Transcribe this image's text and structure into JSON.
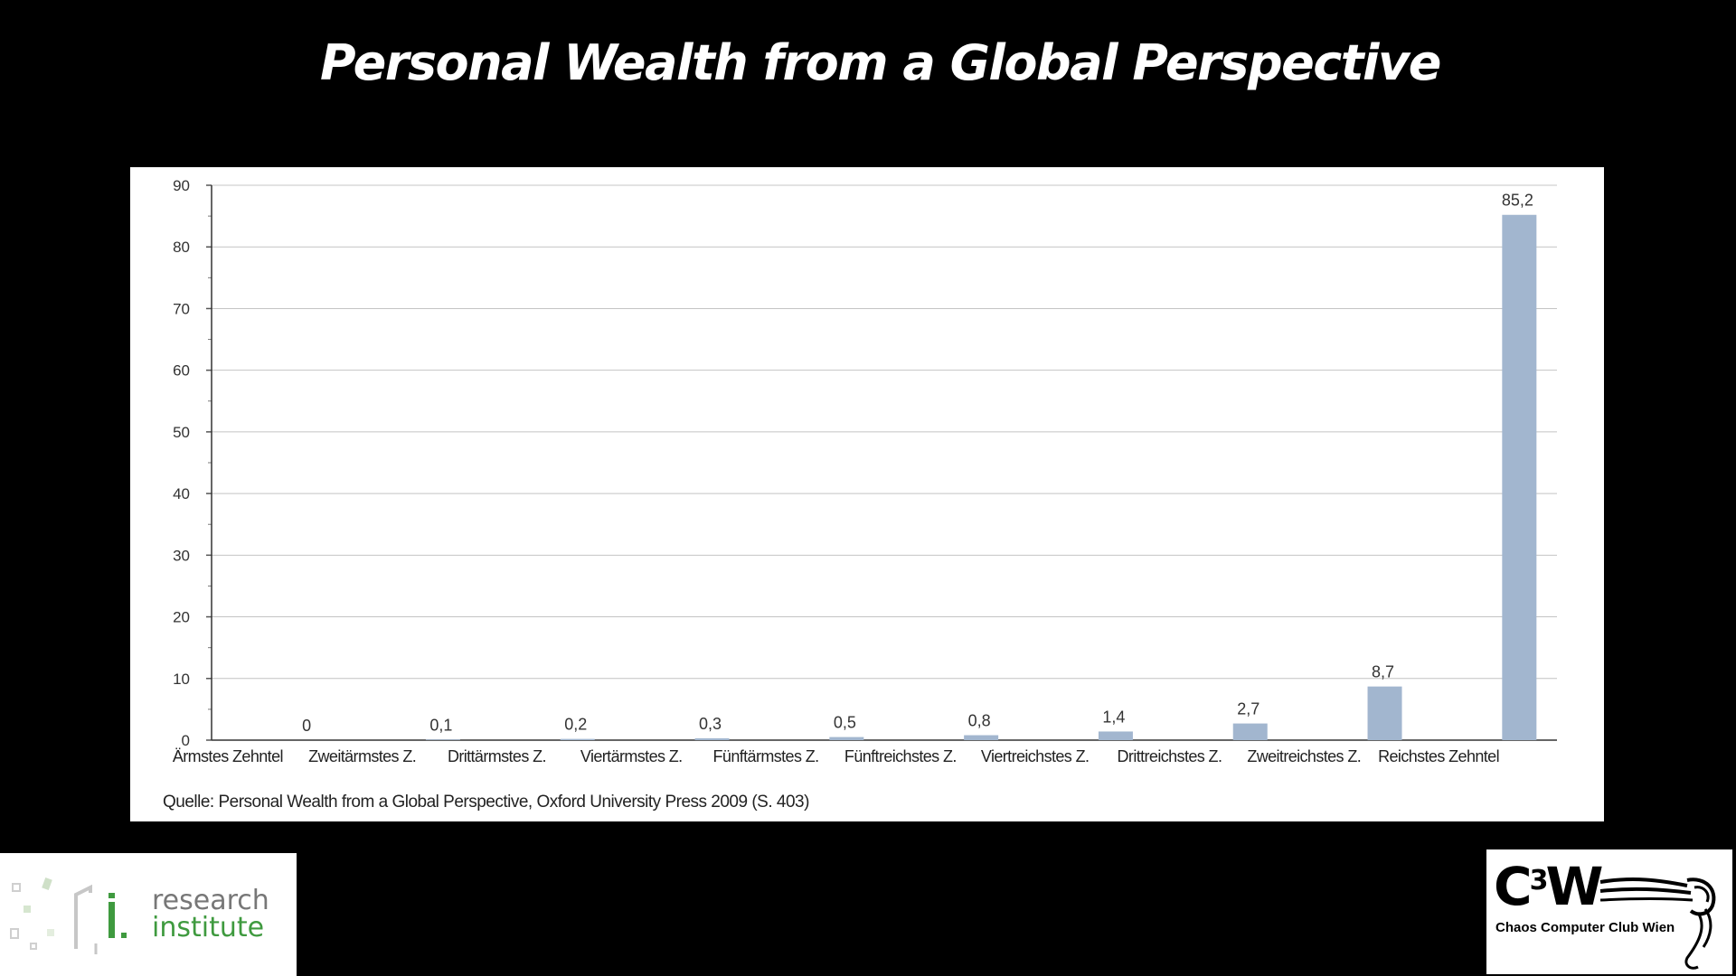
{
  "slide": {
    "title": "Personal Wealth from a Global Perspective"
  },
  "chart_data": {
    "type": "bar",
    "categories": [
      "Ärmstes Zehntel",
      "Zweitärmstes Z.",
      "Drittärmstes Z.",
      "Viertärmstes Z.",
      "Fünftärmstes Z.",
      "Fünftreichstes Z.",
      "Viertreichstes Z.",
      "Drittreichstes Z.",
      "Zweitreichstes Z.",
      "Reichstes Zehntel"
    ],
    "values": [
      0,
      0.1,
      0.2,
      0.3,
      0.5,
      0.8,
      1.4,
      2.7,
      8.7,
      85.2
    ],
    "value_labels": [
      "0",
      "0,1",
      "0,2",
      "0,3",
      "0,5",
      "0,8",
      "1,4",
      "2,7",
      "8,7",
      "85,2"
    ],
    "y_ticks": [
      0,
      10,
      20,
      30,
      40,
      50,
      60,
      70,
      80,
      90
    ],
    "ylim": [
      0,
      90
    ],
    "grid": true,
    "legend": "none",
    "bar_color": "#a2b6cf",
    "title": "",
    "xlabel": "",
    "ylabel": ""
  },
  "source_note": "Quelle: Personal Wealth from a Global Perspective, Oxford University Press 2009 (S. 403)",
  "logos": {
    "left": {
      "line1": "research",
      "line2": "institute",
      "accent": "#3f9a3f"
    },
    "right": {
      "main": "C",
      "sup": "3",
      "tail": "W",
      "subtitle": "Chaos Computer Club Wien"
    }
  }
}
